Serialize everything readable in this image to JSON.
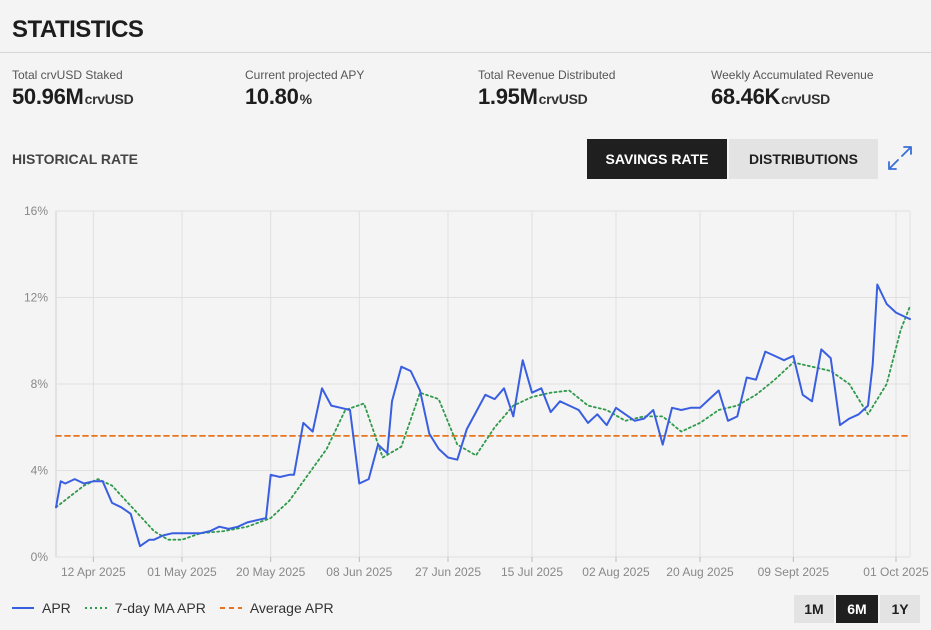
{
  "page": {
    "title": "STATISTICS"
  },
  "stats": [
    {
      "label": "Total crvUSD Staked",
      "value": "50.96M",
      "unit": "crvUSD"
    },
    {
      "label": "Current projected APY",
      "value": "10.80",
      "unit": "%"
    },
    {
      "label": "Total Revenue Distributed",
      "value": "1.95M",
      "unit": "crvUSD"
    },
    {
      "label": "Weekly Accumulated Revenue",
      "value": "68.46K",
      "unit": "crvUSD"
    }
  ],
  "section": {
    "title": "HISTORICAL RATE"
  },
  "tabs": {
    "active": "SAVINGS RATE",
    "inactive": "DISTRIBUTIONS"
  },
  "icons": {
    "expand": "expand-arrows-icon"
  },
  "colors": {
    "apr": "#3a5ee0",
    "ma": "#2f9a4a",
    "avg": "#e8741e",
    "dark": "#1f1f1f"
  },
  "ranges": {
    "options": [
      "1M",
      "6M",
      "1Y"
    ],
    "active": "6M"
  },
  "chart_data": {
    "type": "line",
    "x_is_date": true,
    "x_range": [
      "2025-04-04",
      "2025-10-04"
    ],
    "ylim": [
      0,
      16
    ],
    "y_ticks": [
      0,
      4,
      8,
      12,
      16
    ],
    "y_tick_labels": [
      "0%",
      "4%",
      "8%",
      "12%",
      "16%"
    ],
    "x_ticks": [
      "2025-04-12",
      "2025-05-01",
      "2025-05-20",
      "2025-06-08",
      "2025-06-27",
      "2025-07-15",
      "2025-08-02",
      "2025-08-20",
      "2025-09-09",
      "2025-10-01"
    ],
    "x_tick_labels": [
      "12 Apr 2025",
      "01 May 2025",
      "20 May 2025",
      "08 Jun 2025",
      "27 Jun 2025",
      "15 Jul 2025",
      "02 Aug 2025",
      "20 Aug 2025",
      "09 Sept 2025",
      "01 Oct 2025"
    ],
    "grid": true,
    "legend_position": "bottom-left",
    "series": [
      {
        "name": "APR",
        "style": "solid",
        "x": [
          "2025-04-04",
          "2025-04-05",
          "2025-04-06",
          "2025-04-08",
          "2025-04-10",
          "2025-04-12",
          "2025-04-14",
          "2025-04-16",
          "2025-04-18",
          "2025-04-20",
          "2025-04-22",
          "2025-04-24",
          "2025-04-25",
          "2025-04-27",
          "2025-04-29",
          "2025-05-01",
          "2025-05-03",
          "2025-05-05",
          "2025-05-07",
          "2025-05-09",
          "2025-05-11",
          "2025-05-13",
          "2025-05-15",
          "2025-05-17",
          "2025-05-19",
          "2025-05-20",
          "2025-05-22",
          "2025-05-24",
          "2025-05-25",
          "2025-05-27",
          "2025-05-29",
          "2025-05-31",
          "2025-06-02",
          "2025-06-04",
          "2025-06-06",
          "2025-06-08",
          "2025-06-10",
          "2025-06-12",
          "2025-06-14",
          "2025-06-15",
          "2025-06-17",
          "2025-06-19",
          "2025-06-21",
          "2025-06-23",
          "2025-06-25",
          "2025-06-27",
          "2025-06-29",
          "2025-07-01",
          "2025-07-03",
          "2025-07-05",
          "2025-07-07",
          "2025-07-09",
          "2025-07-11",
          "2025-07-13",
          "2025-07-15",
          "2025-07-17",
          "2025-07-19",
          "2025-07-21",
          "2025-07-23",
          "2025-07-25",
          "2025-07-27",
          "2025-07-29",
          "2025-07-31",
          "2025-08-02",
          "2025-08-04",
          "2025-08-06",
          "2025-08-08",
          "2025-08-10",
          "2025-08-12",
          "2025-08-14",
          "2025-08-16",
          "2025-08-18",
          "2025-08-20",
          "2025-08-22",
          "2025-08-24",
          "2025-08-26",
          "2025-08-28",
          "2025-08-30",
          "2025-09-01",
          "2025-09-03",
          "2025-09-05",
          "2025-09-07",
          "2025-09-09",
          "2025-09-11",
          "2025-09-13",
          "2025-09-15",
          "2025-09-17",
          "2025-09-19",
          "2025-09-21",
          "2025-09-23",
          "2025-09-25",
          "2025-09-26",
          "2025-09-27",
          "2025-09-29",
          "2025-10-01",
          "2025-10-03",
          "2025-10-04"
        ],
        "y": [
          2.3,
          3.5,
          3.4,
          3.6,
          3.4,
          3.5,
          3.5,
          2.5,
          2.3,
          2.0,
          0.5,
          0.8,
          0.8,
          1.0,
          1.1,
          1.1,
          1.1,
          1.1,
          1.2,
          1.4,
          1.3,
          1.4,
          1.6,
          1.7,
          1.8,
          3.8,
          3.7,
          3.8,
          3.8,
          6.2,
          5.8,
          7.8,
          7.0,
          6.9,
          6.8,
          3.4,
          3.6,
          5.2,
          4.8,
          7.2,
          8.8,
          8.6,
          7.7,
          5.7,
          5.0,
          4.6,
          4.5,
          5.9,
          6.7,
          7.5,
          7.3,
          7.8,
          6.5,
          9.1,
          7.6,
          7.8,
          6.7,
          7.2,
          7.0,
          6.8,
          6.2,
          6.6,
          6.1,
          6.9,
          6.6,
          6.3,
          6.4,
          6.8,
          5.2,
          6.9,
          6.8,
          6.9,
          6.9,
          7.3,
          7.7,
          6.3,
          6.5,
          8.3,
          8.2,
          9.5,
          9.3,
          9.1,
          9.3,
          7.5,
          7.2,
          9.6,
          9.2,
          6.1,
          6.4,
          6.6,
          7.0,
          8.9,
          12.6,
          11.7,
          11.3,
          11.1,
          11.0
        ]
      },
      {
        "name": "7-day MA APR",
        "style": "dotted",
        "x": [
          "2025-04-04",
          "2025-04-07",
          "2025-04-10",
          "2025-04-13",
          "2025-04-16",
          "2025-04-19",
          "2025-04-22",
          "2025-04-25",
          "2025-04-28",
          "2025-05-01",
          "2025-05-05",
          "2025-05-10",
          "2025-05-15",
          "2025-05-20",
          "2025-05-24",
          "2025-05-28",
          "2025-06-01",
          "2025-06-05",
          "2025-06-09",
          "2025-06-13",
          "2025-06-17",
          "2025-06-21",
          "2025-06-25",
          "2025-06-29",
          "2025-07-03",
          "2025-07-07",
          "2025-07-11",
          "2025-07-15",
          "2025-07-19",
          "2025-07-23",
          "2025-07-27",
          "2025-07-31",
          "2025-08-04",
          "2025-08-08",
          "2025-08-12",
          "2025-08-16",
          "2025-08-20",
          "2025-08-24",
          "2025-08-28",
          "2025-09-01",
          "2025-09-05",
          "2025-09-09",
          "2025-09-13",
          "2025-09-17",
          "2025-09-21",
          "2025-09-25",
          "2025-09-29",
          "2025-10-02",
          "2025-10-04"
        ],
        "y": [
          2.3,
          2.8,
          3.3,
          3.6,
          3.3,
          2.6,
          1.9,
          1.2,
          0.8,
          0.8,
          1.1,
          1.2,
          1.4,
          1.8,
          2.6,
          3.8,
          5.0,
          6.8,
          7.1,
          4.6,
          5.1,
          7.6,
          7.3,
          5.2,
          4.7,
          6.0,
          7.0,
          7.4,
          7.6,
          7.7,
          7.0,
          6.8,
          6.3,
          6.5,
          6.5,
          5.8,
          6.2,
          6.8,
          7.0,
          7.5,
          8.2,
          9.0,
          8.8,
          8.6,
          8.0,
          6.6,
          8.0,
          10.5,
          11.6
        ]
      },
      {
        "name": "Average APR",
        "style": "dashed",
        "x": [
          "2025-04-04",
          "2025-10-04"
        ],
        "y": [
          5.6,
          5.6
        ]
      }
    ]
  }
}
